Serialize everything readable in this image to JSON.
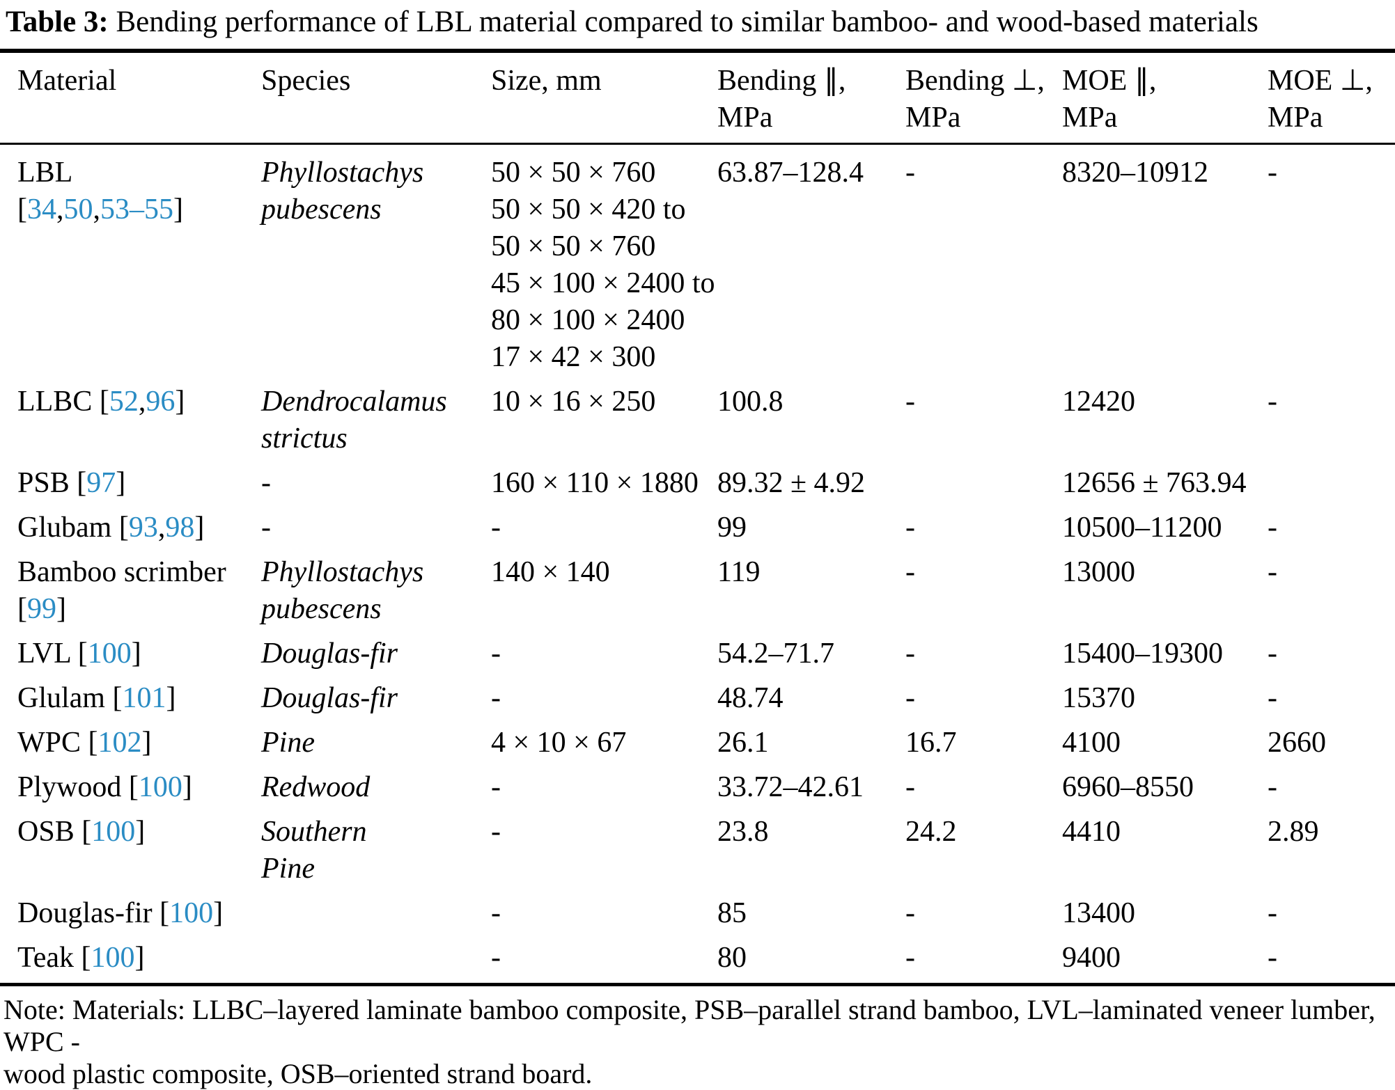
{
  "title": {
    "label": "Table 3:",
    "text": "Bending performance of LBL material compared to similar bamboo- and wood-based materials"
  },
  "colors": {
    "citation_blue": "#2a8cc4",
    "text_black": "#000000",
    "background": "#ffffff"
  },
  "table": {
    "headers": [
      {
        "line1": "Material",
        "line2": ""
      },
      {
        "line1": "Species",
        "line2": ""
      },
      {
        "line1": "Size, mm",
        "line2": ""
      },
      {
        "line1": "Bending ∥,",
        "line2": "MPa"
      },
      {
        "line1": "Bending ⊥,",
        "line2": "MPa"
      },
      {
        "line1": "MOE ∥,",
        "line2": "MPa"
      },
      {
        "line1": "MOE ⊥,",
        "line2": "MPa"
      }
    ],
    "rows": [
      {
        "material": {
          "name": "LBL",
          "citation": "[34,50,53–55]",
          "citation_newline": true
        },
        "species": [
          "Phyllostachys",
          "pubescens"
        ],
        "size": [
          "50 × 50 × 760",
          "50 × 50 × 420 to",
          "50 × 50 × 760",
          "45 × 100 × 2400 to",
          "80 × 100 × 2400",
          "17 × 42 × 300"
        ],
        "bending_par": "63.87–128.4",
        "bending_perp": "-",
        "moe_par": "8320–10912",
        "moe_perp": "-"
      },
      {
        "material": {
          "name": "LLBC",
          "citation": "[52,96]",
          "citation_newline": false
        },
        "species": [
          "Dendrocalamus",
          "strictus"
        ],
        "size": [
          "10 × 16 × 250"
        ],
        "bending_par": "100.8",
        "bending_perp": "-",
        "moe_par": "12420",
        "moe_perp": "-"
      },
      {
        "material": {
          "name": "PSB",
          "citation": "[97]",
          "citation_newline": false
        },
        "species": [
          "-"
        ],
        "size": [
          "160 × 110 × 1880"
        ],
        "bending_par": "89.32 ± 4.92",
        "bending_perp": "",
        "moe_par": "12656 ± 763.94",
        "moe_perp": ""
      },
      {
        "material": {
          "name": "Glubam",
          "citation": "[93,98]",
          "citation_newline": false
        },
        "species": [
          "-"
        ],
        "size": [
          "-"
        ],
        "bending_par": "99",
        "bending_perp": "-",
        "moe_par": "10500–11200",
        "moe_perp": "-"
      },
      {
        "material": {
          "name": "Bamboo scrimber",
          "citation": "[99]",
          "citation_newline": true
        },
        "species": [
          "Phyllostachys",
          "pubescens"
        ],
        "size": [
          "140 × 140"
        ],
        "bending_par": "119",
        "bending_perp": "-",
        "moe_par": "13000",
        "moe_perp": "-"
      },
      {
        "material": {
          "name": "LVL",
          "citation": "[100]",
          "citation_newline": false
        },
        "species": [
          "Douglas-fir"
        ],
        "size": [
          "-"
        ],
        "bending_par": "54.2–71.7",
        "bending_perp": "-",
        "moe_par": "15400–19300",
        "moe_perp": "-"
      },
      {
        "material": {
          "name": "Glulam",
          "citation": "[101]",
          "citation_newline": false
        },
        "species": [
          "Douglas-fir"
        ],
        "size": [
          "-"
        ],
        "bending_par": "48.74",
        "bending_perp": "-",
        "moe_par": "15370",
        "moe_perp": "-"
      },
      {
        "material": {
          "name": "WPC",
          "citation": "[102]",
          "citation_newline": false
        },
        "species": [
          "Pine"
        ],
        "size": [
          "4 × 10 × 67"
        ],
        "bending_par": "26.1",
        "bending_perp": "16.7",
        "moe_par": "4100",
        "moe_perp": "2660"
      },
      {
        "material": {
          "name": "Plywood",
          "citation": "[100]",
          "citation_newline": false
        },
        "species": [
          "Redwood"
        ],
        "size": [
          "-"
        ],
        "bending_par": "33.72–42.61",
        "bending_perp": "-",
        "moe_par": "6960–8550",
        "moe_perp": "-"
      },
      {
        "material": {
          "name": "OSB",
          "citation": "[100]",
          "citation_newline": false
        },
        "species": [
          "Southern",
          "Pine"
        ],
        "size": [
          "-"
        ],
        "bending_par": "23.8",
        "bending_perp": "24.2",
        "moe_par": "4410",
        "moe_perp": "2.89"
      },
      {
        "material": {
          "name": "Douglas-fir",
          "citation": "[100]",
          "citation_newline": false
        },
        "species": [],
        "size": [
          "-"
        ],
        "bending_par": "85",
        "bending_perp": "-",
        "moe_par": "13400",
        "moe_perp": "-"
      },
      {
        "material": {
          "name": "Teak",
          "citation": "[100]",
          "citation_newline": false
        },
        "species": [],
        "size": [
          "-"
        ],
        "bending_par": "80",
        "bending_perp": "-",
        "moe_par": "9400",
        "moe_perp": "-"
      }
    ]
  },
  "note": {
    "line1": "Note: Materials: LLBC–layered laminate bamboo composite, PSB–parallel strand bamboo, LVL–laminated veneer lumber, WPC -",
    "line2": "wood plastic composite, OSB–oriented strand board."
  }
}
